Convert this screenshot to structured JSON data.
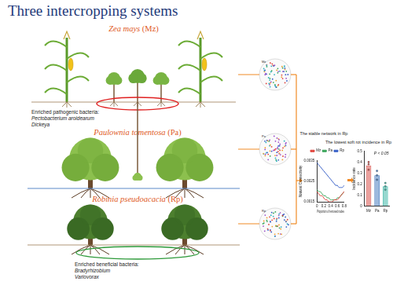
{
  "title": "Three intercropping systems",
  "systems": [
    {
      "name": "Zea mays",
      "code": "(Mz)",
      "bacteria_heading": "Enriched pathogenic bacteria:",
      "bacteria": [
        "Pectobacterium aroidearum",
        "Dickeya"
      ]
    },
    {
      "name": "Paulownia tomentosa",
      "code": "(Pa)"
    },
    {
      "name": "Robinia pseudoacacia",
      "code": "(Rp)",
      "bacteria_heading": "Enriched beneficial bacteria:",
      "bacteria": [
        "Bradyrhizobium",
        "Variovorax"
      ]
    }
  ],
  "networks": [
    "Mz",
    "Pa",
    "Rp"
  ],
  "chart_data": [
    {
      "type": "line",
      "title": "The stable network in Rp",
      "x_label": "Proportion of removed nodes",
      "y_label": "Natural Connectivity",
      "x": [
        0,
        0.05,
        0.1,
        0.15,
        0.2,
        0.25,
        0.3,
        0.35,
        0.4,
        0.45,
        0.5,
        0.55,
        0.6,
        0.65,
        0.7,
        0.75,
        0.8
      ],
      "series": [
        {
          "name": "Mz",
          "color": "#e0443c",
          "values": [
            0.002,
            0.0019,
            0.0018,
            0.0018,
            0.0017,
            0.0016,
            0.0016,
            0.0015,
            0.0015,
            0.0015,
            0.0016,
            0.0016,
            0.0016,
            0.0017,
            0.0018,
            0.0019,
            0.002
          ]
        },
        {
          "name": "Pa",
          "color": "#3aa55a",
          "values": [
            0.0021,
            0.002,
            0.002,
            0.0019,
            0.0018,
            0.0018,
            0.0017,
            0.0017,
            0.0016,
            0.0016,
            0.0016,
            0.0016,
            0.0017,
            0.0017,
            0.0018,
            0.0019,
            0.002
          ]
        },
        {
          "name": "Rp",
          "color": "#3a62c8",
          "values": [
            0.0034,
            0.0033,
            0.0032,
            0.0031,
            0.003,
            0.0029,
            0.0028,
            0.0027,
            0.0026,
            0.0025,
            0.0024,
            0.0023,
            0.0023,
            0.0022,
            0.0022,
            0.0022,
            0.0023
          ]
        }
      ],
      "xlim": [
        0,
        0.8
      ],
      "xticks": [
        0,
        0.2,
        0.4,
        0.6,
        0.8
      ],
      "ylim": [
        0.0015,
        0.0035
      ],
      "yticks": [
        0.0015,
        0.0025,
        0.0035
      ],
      "grid": false,
      "legend": "top right"
    },
    {
      "type": "bar",
      "title": "The lowest soft rot incidence in Rp",
      "y_label": "Incidence rate",
      "categories": [
        "Mz",
        "Pa",
        "Rp"
      ],
      "values": [
        0.37,
        0.28,
        0.18
      ],
      "points": [
        [
          0.33,
          0.38,
          0.4
        ],
        [
          0.24,
          0.28,
          0.32
        ],
        [
          0.15,
          0.18,
          0.21
        ]
      ],
      "colors": [
        "#d9534f",
        "#4a7fc1",
        "#3fb8a8"
      ],
      "ylim": [
        0,
        0.5
      ],
      "yticks": [
        0,
        0.1,
        0.2,
        0.3,
        0.4,
        0.5
      ],
      "annotations": [
        "P < 0.05"
      ],
      "grid": false
    }
  ]
}
